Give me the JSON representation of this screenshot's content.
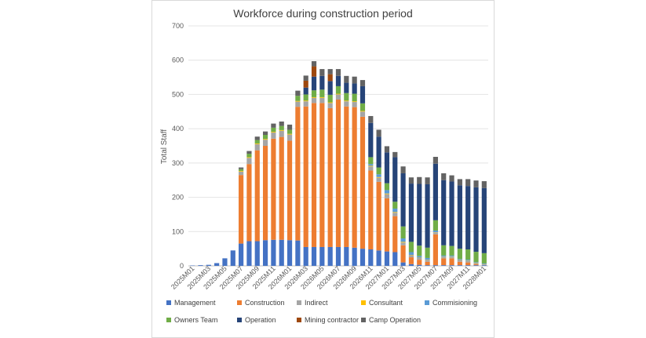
{
  "chart_data": {
    "type": "bar",
    "stacked": true,
    "title": "Workforce during construction period",
    "ylabel": "Total Staff",
    "xlabel": "",
    "ylim": [
      0,
      700
    ],
    "yticks": [
      0,
      100,
      200,
      300,
      400,
      500,
      600,
      700
    ],
    "categories": [
      "2025M01",
      "2025M02",
      "2025M03",
      "2025M04",
      "2025M05",
      "2025M06",
      "2025M07",
      "2025M08",
      "2025M09",
      "2025M10",
      "2025M11",
      "2025M12",
      "2026M01",
      "2026M02",
      "2026M03",
      "2026M04",
      "2026M05",
      "2026M06",
      "2026M07",
      "2026M08",
      "2026M09",
      "2026M10",
      "2026M11",
      "2026M12",
      "2027M01",
      "2027M02",
      "2027M03",
      "2027M04",
      "2027M05",
      "2027M06",
      "2027M07",
      "2027M08",
      "2027M09",
      "2027M10",
      "2027M11",
      "2027M12",
      "2028M01"
    ],
    "tick_labels": [
      "2025M01",
      "2025M03",
      "2025M05",
      "2025M07",
      "2025M09",
      "2025M11",
      "2026M01",
      "2026M03",
      "2026M05",
      "2026M07",
      "2026M09",
      "2026M11",
      "2027M01",
      "2027M03",
      "2027M05",
      "2027M07",
      "2027M09",
      "2027M11",
      "2028M01"
    ],
    "series": [
      {
        "name": "Management",
        "color": "#4472c4",
        "values": [
          1,
          2,
          3,
          8,
          22,
          45,
          65,
          72,
          72,
          75,
          76,
          76,
          75,
          74,
          55,
          55,
          55,
          55,
          55,
          55,
          53,
          50,
          48,
          45,
          42,
          40,
          10,
          5,
          3,
          2,
          2,
          2,
          2,
          2,
          2,
          2,
          2
        ]
      },
      {
        "name": "Construction",
        "color": "#ed7d31",
        "values": [
          0,
          0,
          0,
          0,
          0,
          0,
          200,
          225,
          265,
          275,
          295,
          300,
          290,
          390,
          410,
          420,
          420,
          405,
          430,
          410,
          410,
          385,
          230,
          200,
          155,
          105,
          50,
          20,
          15,
          10,
          90,
          20,
          20,
          10,
          8,
          3,
          0
        ]
      },
      {
        "name": "Indirect",
        "color": "#a5a5a5",
        "values": [
          0,
          0,
          0,
          0,
          0,
          0,
          10,
          18,
          18,
          18,
          18,
          18,
          18,
          15,
          15,
          15,
          15,
          15,
          15,
          15,
          15,
          15,
          12,
          12,
          12,
          10,
          8,
          6,
          5,
          5,
          5,
          4,
          4,
          4,
          4,
          3,
          2
        ]
      },
      {
        "name": "Consultant",
        "color": "#ffc000",
        "values": [
          0,
          0,
          0,
          0,
          0,
          0,
          2,
          2,
          2,
          2,
          2,
          2,
          2,
          2,
          2,
          2,
          2,
          2,
          2,
          2,
          2,
          2,
          2,
          2,
          2,
          2,
          2,
          1,
          1,
          1,
          1,
          1,
          1,
          1,
          1,
          1,
          1
        ]
      },
      {
        "name": "Commisioning",
        "color": "#5b9bd5",
        "values": [
          0,
          0,
          0,
          0,
          0,
          0,
          0,
          0,
          0,
          0,
          0,
          0,
          0,
          0,
          0,
          0,
          0,
          0,
          0,
          0,
          0,
          0,
          5,
          8,
          10,
          10,
          10,
          8,
          5,
          5,
          5,
          3,
          3,
          3,
          3,
          2,
          2
        ]
      },
      {
        "name": "Owners Team",
        "color": "#70ad47",
        "values": [
          0,
          0,
          0,
          0,
          0,
          0,
          5,
          10,
          10,
          12,
          12,
          12,
          12,
          15,
          18,
          20,
          22,
          22,
          22,
          22,
          22,
          22,
          20,
          20,
          20,
          20,
          35,
          30,
          30,
          30,
          30,
          30,
          28,
          30,
          30,
          30,
          30
        ]
      },
      {
        "name": "Operation",
        "color": "#264478",
        "values": [
          0,
          0,
          0,
          0,
          0,
          0,
          0,
          0,
          0,
          0,
          0,
          0,
          0,
          0,
          20,
          40,
          40,
          40,
          30,
          30,
          30,
          50,
          100,
          90,
          90,
          130,
          155,
          170,
          180,
          185,
          165,
          190,
          188,
          185,
          185,
          188,
          190
        ]
      },
      {
        "name": "Mining contractor",
        "color": "#9e480e",
        "values": [
          0,
          0,
          0,
          0,
          0,
          0,
          0,
          0,
          0,
          0,
          0,
          0,
          0,
          0,
          20,
          30,
          0,
          20,
          0,
          0,
          0,
          0,
          0,
          0,
          0,
          0,
          0,
          0,
          0,
          0,
          0,
          0,
          0,
          0,
          0,
          0,
          0
        ]
      },
      {
        "name": "Camp Operation",
        "color": "#636363",
        "values": [
          0,
          0,
          0,
          0,
          0,
          0,
          5,
          8,
          10,
          10,
          12,
          13,
          15,
          15,
          15,
          15,
          20,
          15,
          20,
          20,
          20,
          18,
          20,
          20,
          18,
          15,
          20,
          18,
          20,
          20,
          20,
          20,
          18,
          18,
          20,
          20,
          20
        ]
      }
    ]
  }
}
